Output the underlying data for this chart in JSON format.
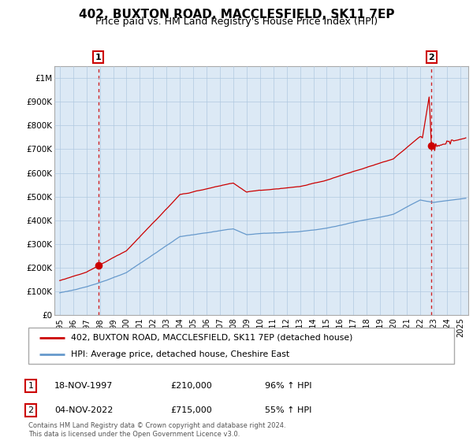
{
  "title": "402, BUXTON ROAD, MACCLESFIELD, SK11 7EP",
  "subtitle": "Price paid vs. HM Land Registry's House Price Index (HPI)",
  "title_fontsize": 11,
  "subtitle_fontsize": 9,
  "ylim": [
    0,
    1050000
  ],
  "yticks": [
    0,
    100000,
    200000,
    300000,
    400000,
    500000,
    600000,
    700000,
    800000,
    900000,
    1000000
  ],
  "ytick_labels": [
    "£0",
    "£100K",
    "£200K",
    "£300K",
    "£400K",
    "£500K",
    "£600K",
    "£700K",
    "£800K",
    "£900K",
    "£1M"
  ],
  "legend_entries": [
    "402, BUXTON ROAD, MACCLESFIELD, SK11 7EP (detached house)",
    "HPI: Average price, detached house, Cheshire East"
  ],
  "legend_colors": [
    "#cc0000",
    "#6699cc"
  ],
  "sale1_year": 1997.88,
  "sale1_price": 210000,
  "sale2_year": 2022.84,
  "sale2_price": 715000,
  "annotation_table": [
    {
      "num": "1",
      "date": "18-NOV-1997",
      "price": "£210,000",
      "hpi": "96% ↑ HPI"
    },
    {
      "num": "2",
      "date": "04-NOV-2022",
      "price": "£715,000",
      "hpi": "55% ↑ HPI"
    }
  ],
  "footer": "Contains HM Land Registry data © Crown copyright and database right 2024.\nThis data is licensed under the Open Government Licence v3.0.",
  "background_color": "#ffffff",
  "chart_bg_color": "#dce9f5",
  "grid_color": "#b0c8e0",
  "red_line_color": "#cc0000",
  "blue_line_color": "#6699cc"
}
